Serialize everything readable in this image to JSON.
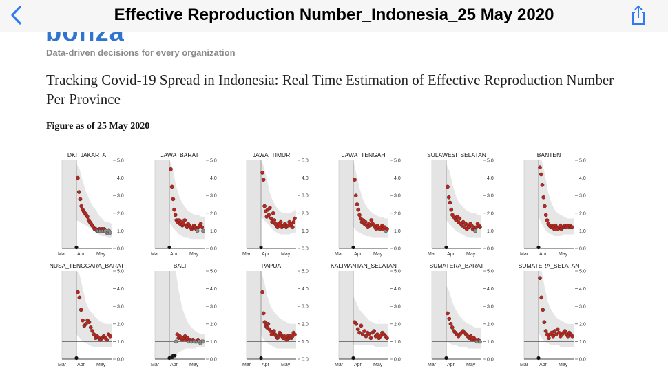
{
  "nav": {
    "title": "Effective Reproduction Number_Indonesia_25 May 2020",
    "back_icon": "chevron-left-icon",
    "share_icon": "share-icon",
    "accent": "#2f7bf6"
  },
  "article": {
    "logo_text": "bonza",
    "tagline": "Data-driven decisions for every organization",
    "headline": "Tracking Covid-19 Spread in Indonesia: Real Time Estimation of Effective Reproduction Number Per Province",
    "figure_caption": "Figure as of 25 May 2020"
  },
  "chart_data": [
    {
      "type": "scatter",
      "title": "DKI_JAKARTA",
      "x_ticks": [
        "Mar",
        "Apr",
        "May"
      ],
      "y_ticks": [
        "0.0",
        "1.0",
        "2.0",
        "3.0",
        "4.0",
        "5.0"
      ],
      "ylim": [
        0,
        5
      ],
      "reference_line": 1.0,
      "y": [
        4.0,
        3.2,
        2.8,
        2.4,
        2.2,
        2.1,
        2.0,
        1.9,
        1.8,
        1.6,
        1.5,
        1.4,
        1.3,
        1.2,
        1.1,
        1.1,
        1.0,
        1.0,
        1.1,
        1.0,
        1.1,
        1.0,
        1.1,
        1.0,
        0.9,
        0.9,
        1.0,
        0.9
      ],
      "band_low": [
        1.6,
        1.5,
        1.4,
        1.3,
        1.2,
        1.1,
        0.9,
        0.8,
        0.7,
        0.7,
        0.6,
        0.6
      ],
      "band_high": [
        4.8,
        4.5,
        3.8,
        3.2,
        2.8,
        2.4,
        2.2,
        1.9,
        1.7,
        1.5,
        1.5,
        1.4
      ]
    },
    {
      "type": "scatter",
      "title": "JAWA_BARAT",
      "x_ticks": [
        "Mar",
        "Apr",
        "May"
      ],
      "y_ticks": [
        "0.0",
        "1.0",
        "2.0",
        "3.0",
        "4.0",
        "5.0"
      ],
      "ylim": [
        0,
        5
      ],
      "reference_line": 1.0,
      "y": [
        4.5,
        3.5,
        2.8,
        2.2,
        1.9,
        1.6,
        1.5,
        1.6,
        1.4,
        1.5,
        1.3,
        1.4,
        1.6,
        1.3,
        1.2,
        1.4,
        1.3,
        1.2,
        1.1,
        1.2,
        1.3,
        1.2,
        1.1,
        1.0,
        1.2,
        1.3,
        1.4,
        1.2,
        1.0
      ],
      "band_low": [
        1.5,
        1.2,
        1.0,
        0.8,
        0.7,
        0.6,
        0.6,
        0.5,
        0.5,
        0.5,
        0.5,
        0.5
      ],
      "band_high": [
        5.0,
        4.6,
        3.6,
        3.0,
        2.6,
        2.3,
        2.1,
        2.0,
        1.9,
        1.9,
        1.8,
        1.8
      ]
    },
    {
      "type": "scatter",
      "title": "JAWA_TIMUR",
      "x_ticks": [
        "Mar",
        "Apr",
        "May"
      ],
      "y_ticks": [
        "0.0",
        "1.0",
        "2.0",
        "3.0",
        "4.0",
        "5.0"
      ],
      "ylim": [
        0,
        5
      ],
      "reference_line": 1.0,
      "y": [
        4.3,
        3.9,
        2.4,
        2.1,
        1.8,
        2.2,
        1.9,
        2.3,
        1.7,
        1.5,
        2.0,
        1.6,
        1.4,
        1.3,
        1.2,
        1.4,
        1.3,
        1.5,
        1.2,
        1.3,
        1.3,
        1.4,
        1.2,
        1.3,
        1.3,
        1.5,
        1.3,
        1.4,
        1.2,
        1.5,
        1.7
      ],
      "band_low": [
        1.8,
        1.6,
        1.4,
        1.2,
        1.0,
        0.9,
        0.8,
        0.8,
        0.8,
        0.8,
        0.9,
        0.9
      ],
      "band_high": [
        5.0,
        4.6,
        3.8,
        3.0,
        2.6,
        2.3,
        2.1,
        2.0,
        2.0,
        2.0,
        2.1,
        2.2
      ]
    },
    {
      "type": "scatter",
      "title": "JAWA_TENGAH",
      "x_ticks": [
        "Mar",
        "Apr",
        "May"
      ],
      "y_ticks": [
        "0.0",
        "1.0",
        "2.0",
        "3.0",
        "4.0",
        "5.0"
      ],
      "ylim": [
        0,
        5
      ],
      "reference_line": 1.0,
      "y": [
        3.9,
        3.0,
        2.5,
        2.2,
        1.9,
        1.7,
        1.5,
        1.6,
        1.4,
        1.5,
        1.3,
        1.2,
        1.4,
        1.3,
        1.6,
        1.4,
        1.3,
        1.2,
        1.1,
        1.3,
        1.2,
        1.1,
        1.2,
        1.3,
        1.1,
        1.2,
        1.0,
        1.1
      ],
      "band_low": [
        1.2,
        1.0,
        0.9,
        0.8,
        0.7,
        0.7,
        0.6,
        0.6,
        0.6,
        0.6,
        0.6,
        0.6
      ],
      "band_high": [
        5.0,
        4.2,
        3.4,
        2.8,
        2.4,
        2.2,
        2.0,
        1.9,
        1.8,
        1.8,
        1.7,
        1.7
      ]
    },
    {
      "type": "scatter",
      "title": "SULAWESI_SELATAN",
      "x_ticks": [
        "Mar",
        "Apr",
        "May"
      ],
      "y_ticks": [
        "0.0",
        "1.0",
        "2.0",
        "3.0",
        "4.0",
        "5.0"
      ],
      "ylim": [
        0,
        5
      ],
      "reference_line": 1.0,
      "y": [
        3.5,
        2.9,
        2.6,
        2.2,
        1.9,
        1.8,
        1.7,
        1.6,
        1.8,
        1.5,
        1.7,
        1.4,
        1.3,
        1.5,
        1.2,
        1.4,
        1.1,
        1.3,
        1.2,
        1.4,
        1.3,
        1.1,
        1.2,
        1.0,
        1.2,
        1.4,
        1.3,
        1.2
      ],
      "band_low": [
        1.6,
        1.4,
        1.2,
        1.0,
        0.9,
        0.8,
        0.7,
        0.6,
        0.6,
        0.6,
        0.6,
        0.6
      ],
      "band_high": [
        4.8,
        4.4,
        3.6,
        3.0,
        2.6,
        2.4,
        2.2,
        2.1,
        2.0,
        2.0,
        1.9,
        1.9
      ]
    },
    {
      "type": "scatter",
      "title": "BANTEN",
      "x_ticks": [
        "Mar",
        "Apr",
        "May"
      ],
      "y_ticks": [
        "0.0",
        "1.0",
        "2.0",
        "3.0",
        "4.0",
        "5.0"
      ],
      "ylim": [
        0,
        5
      ],
      "reference_line": 1.0,
      "y": [
        4.6,
        4.2,
        3.6,
        2.9,
        2.4,
        1.9,
        1.6,
        1.4,
        1.3,
        1.2,
        1.3,
        1.2,
        1.1,
        1.3,
        1.2,
        1.1,
        1.2,
        1.3,
        1.1,
        1.2,
        1.2,
        1.3,
        1.2,
        1.3,
        1.2,
        1.3,
        1.2,
        1.2
      ],
      "band_low": [
        1.8,
        1.4,
        1.1,
        0.9,
        0.8,
        0.7,
        0.7,
        0.7,
        0.8,
        0.8,
        0.8,
        0.8
      ],
      "band_high": [
        5.0,
        5.0,
        4.2,
        3.2,
        2.6,
        2.2,
        2.0,
        1.9,
        1.8,
        1.7,
        1.7,
        1.7
      ]
    },
    {
      "type": "scatter",
      "title": "NUSA_TENGGARA_BARAT",
      "x_ticks": [
        "Mar",
        "Apr",
        "May"
      ],
      "y_ticks": [
        "0.0",
        "1.0",
        "2.0",
        "3.0",
        "4.0",
        "5.0"
      ],
      "ylim": [
        0,
        5
      ],
      "reference_line": 1.0,
      "y": [
        3.8,
        3.5,
        2.8,
        2.2,
        1.9,
        2.0,
        2.2,
        2.1,
        1.8,
        1.6,
        1.4,
        1.2,
        1.3,
        1.2,
        1.1,
        1.2,
        1.3,
        1.2,
        1.1,
        1.4,
        1.3
      ],
      "band_low": [
        1.4,
        1.2,
        1.0,
        0.9,
        0.8,
        0.7,
        0.7,
        0.7,
        0.7,
        0.7,
        0.7,
        0.7
      ],
      "band_high": [
        5.0,
        4.8,
        4.0,
        3.2,
        2.8,
        2.6,
        2.4,
        2.2,
        2.1,
        2.0,
        2.0,
        2.0
      ]
    },
    {
      "type": "scatter",
      "title": "BALI",
      "x_ticks": [
        "Mar",
        "Apr",
        "May"
      ],
      "y_ticks": [
        "0.0",
        "1.0",
        "2.0",
        "3.0",
        "4.0",
        "5.0"
      ],
      "ylim": [
        0,
        5
      ],
      "reference_line": 1.0,
      "y": [
        0.1,
        0.1,
        0.2,
        0.2,
        1.0,
        1.4,
        1.2,
        1.3,
        1.2,
        1.1,
        1.2,
        1.3,
        1.1,
        1.2,
        1.0,
        1.1,
        1.0,
        1.1,
        1.0,
        1.0,
        1.0,
        1.1,
        1.0,
        0.9,
        1.0,
        1.0
      ],
      "band_low": [
        0.0,
        0.0,
        0.2,
        0.4,
        0.5,
        0.6,
        0.6,
        0.6,
        0.6,
        0.7,
        0.7,
        0.7
      ],
      "band_high": [
        5.0,
        5.0,
        5.0,
        3.8,
        2.9,
        2.4,
        2.0,
        1.8,
        1.6,
        1.5,
        1.4,
        1.4
      ]
    },
    {
      "type": "scatter",
      "title": "PAPUA",
      "x_ticks": [
        "Mar",
        "Apr",
        "May"
      ],
      "y_ticks": [
        "0.0",
        "1.0",
        "2.0",
        "3.0",
        "4.0",
        "5.0"
      ],
      "ylim": [
        0,
        5
      ],
      "reference_line": 1.0,
      "y": [
        3.8,
        2.6,
        2.1,
        1.9,
        1.8,
        2.0,
        1.7,
        1.6,
        1.4,
        1.5,
        1.6,
        1.4,
        1.3,
        1.2,
        1.3,
        1.5,
        1.4,
        1.3,
        1.2,
        1.3,
        1.2,
        1.1,
        1.3,
        1.2,
        1.3,
        1.2,
        1.3,
        1.5,
        1.4
      ],
      "band_low": [
        1.4,
        1.1,
        0.9,
        0.8,
        0.7,
        0.6,
        0.6,
        0.6,
        0.6,
        0.6,
        0.6,
        0.6
      ],
      "band_high": [
        5.0,
        4.4,
        3.6,
        3.0,
        2.7,
        2.5,
        2.3,
        2.2,
        2.1,
        2.0,
        2.0,
        2.0
      ]
    },
    {
      "type": "scatter",
      "title": "KALIMANTAN_SELATAN",
      "x_ticks": [
        "Mar",
        "Apr",
        "May"
      ],
      "y_ticks": [
        "0.0",
        "1.0",
        "2.0",
        "3.0",
        "4.0",
        "5.0"
      ],
      "ylim": [
        0,
        5
      ],
      "reference_line": 1.0,
      "y": [
        2.1,
        2.0,
        1.7,
        1.5,
        1.9,
        1.4,
        1.6,
        1.3,
        1.5,
        1.4,
        1.2,
        1.5,
        1.6,
        1.3,
        1.4,
        1.2,
        1.3,
        1.5,
        1.4,
        1.3,
        1.2
      ],
      "band_low": [
        0.8,
        0.8,
        0.8,
        0.8,
        0.8,
        0.8,
        0.8,
        0.7,
        0.7,
        0.7,
        0.7,
        0.7
      ],
      "band_high": [
        3.6,
        3.2,
        2.8,
        2.6,
        2.4,
        2.2,
        2.1,
        2.0,
        2.0,
        2.0,
        2.0,
        2.0
      ]
    },
    {
      "type": "scatter",
      "title": "SUMATERA_BARAT",
      "x_ticks": [
        "Mar",
        "Apr",
        "May"
      ],
      "y_ticks": [
        "0.0",
        "1.0",
        "2.0",
        "3.0",
        "4.0",
        "5.0"
      ],
      "ylim": [
        0,
        5
      ],
      "reference_line": 1.0,
      "y": [
        2.6,
        2.3,
        2.0,
        1.8,
        1.6,
        1.5,
        1.4,
        1.3,
        1.4,
        1.5,
        1.6,
        1.5,
        1.4,
        1.3,
        1.2,
        1.3,
        1.1,
        1.2,
        1.1,
        1.0,
        1.1,
        1.0
      ],
      "band_low": [
        1.0,
        0.9,
        0.8,
        0.8,
        0.7,
        0.7,
        0.7,
        0.6,
        0.6,
        0.6,
        0.6,
        0.6
      ],
      "band_high": [
        4.2,
        3.8,
        3.2,
        2.8,
        2.5,
        2.3,
        2.1,
        2.0,
        1.9,
        1.8,
        1.8,
        1.8
      ]
    },
    {
      "type": "scatter",
      "title": "SUMATERA_SELATAN",
      "x_ticks": [
        "Mar",
        "Apr",
        "May"
      ],
      "y_ticks": [
        "0.0",
        "1.0",
        "2.0",
        "3.0",
        "4.0",
        "5.0"
      ],
      "ylim": [
        0,
        5
      ],
      "reference_line": 1.0,
      "y": [
        4.6,
        3.5,
        2.8,
        2.1,
        1.6,
        1.4,
        1.2,
        1.4,
        1.5,
        1.3,
        1.6,
        1.4,
        1.7,
        1.5,
        1.3,
        1.4,
        1.5,
        1.6,
        1.4,
        1.3,
        1.5,
        1.4,
        1.3
      ],
      "band_low": [
        1.5,
        1.2,
        1.0,
        0.9,
        0.8,
        0.8,
        0.8,
        0.7,
        0.7,
        0.7,
        0.7,
        0.7
      ],
      "band_high": [
        5.0,
        5.0,
        4.0,
        3.2,
        2.8,
        2.5,
        2.3,
        2.2,
        2.1,
        2.0,
        2.0,
        2.0
      ]
    }
  ]
}
